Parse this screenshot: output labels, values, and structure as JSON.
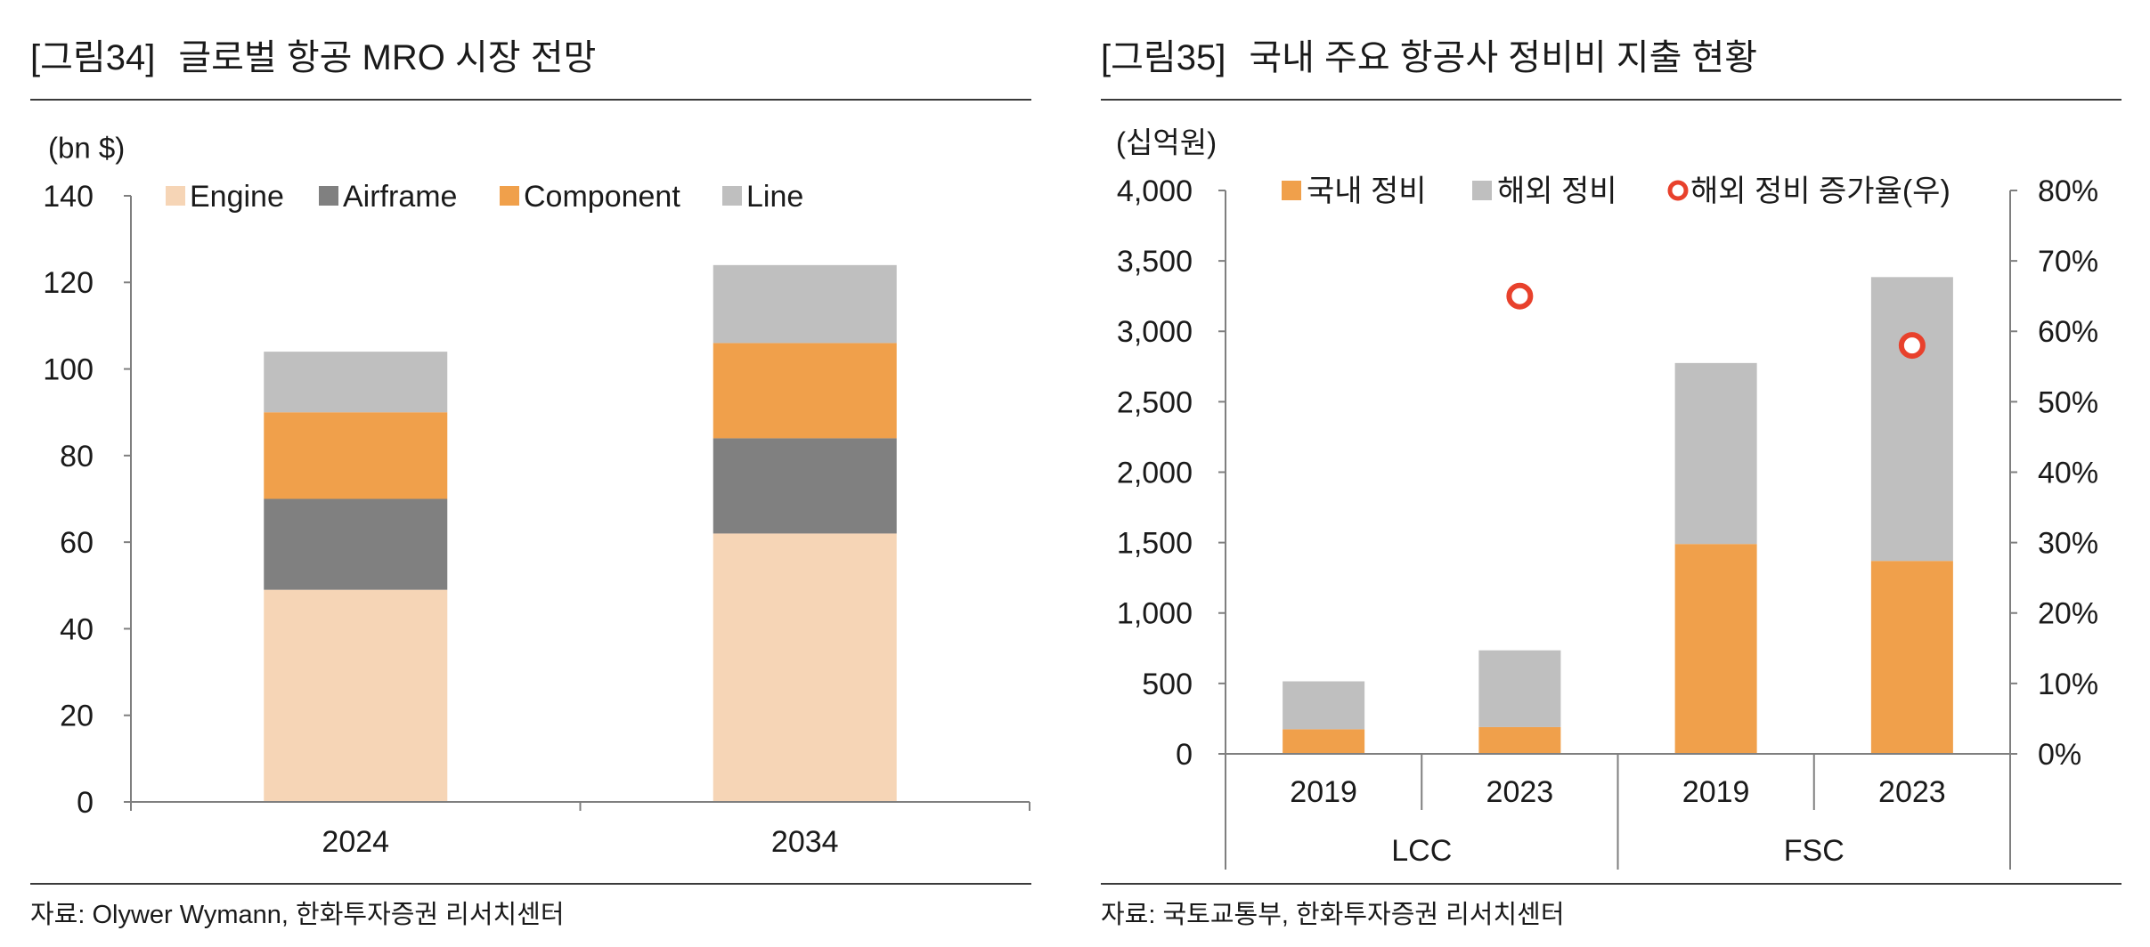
{
  "chart_data": [
    {
      "type": "bar",
      "stacked": true,
      "figure_label": "[그림34]",
      "title": "글로벌 항공 MRO 시장 전망",
      "ylabel": "(bn $)",
      "xlabel": "",
      "categories": [
        "2024",
        "2034"
      ],
      "ylim": [
        0,
        140
      ],
      "ytick_labels": [
        "0",
        "20",
        "40",
        "60",
        "80",
        "100",
        "120",
        "140"
      ],
      "series": [
        {
          "name": "Engine",
          "color": "#F6D5B6",
          "values": [
            49,
            62
          ]
        },
        {
          "name": "Airframe",
          "color": "#808080",
          "values": [
            21,
            22
          ]
        },
        {
          "name": "Component",
          "color": "#F0A04B",
          "values": [
            20,
            22
          ]
        },
        {
          "name": "Line",
          "color": "#BFBFBF",
          "values": [
            14,
            18
          ]
        }
      ],
      "source": "자료: Olywer Wymann, 한화투자증권 리서치센터"
    },
    {
      "type": "bar",
      "stacked": true,
      "figure_label": "[그림35]",
      "title": "국내 주요 항공사 정비비 지출 현황",
      "ylabel": "(십억원)",
      "xlabel": "",
      "categories": [
        "2019",
        "2023",
        "2019",
        "2023"
      ],
      "groups": [
        {
          "label": "LCC",
          "span": 2
        },
        {
          "label": "FSC",
          "span": 2
        }
      ],
      "ylim": [
        0,
        4000
      ],
      "ytick_labels": [
        "0",
        "500",
        "1,000",
        "1,500",
        "2,000",
        "2,500",
        "3,000",
        "3,500",
        "4,000"
      ],
      "y2lim": [
        0,
        80
      ],
      "y2tick_labels": [
        "0%",
        "10%",
        "20%",
        "30%",
        "40%",
        "50%",
        "60%",
        "70%",
        "80%"
      ],
      "series": [
        {
          "name": "국내 정비",
          "type": "bar",
          "color": "#F0A04B",
          "values": [
            175,
            190,
            1490,
            1370
          ]
        },
        {
          "name": "해외 정비",
          "type": "bar",
          "color": "#BFBFBF",
          "values": [
            340,
            545,
            1285,
            2015
          ]
        },
        {
          "name": "해외 정비 증가율(우)",
          "type": "scatter",
          "color": "#E8412C",
          "values": [
            null,
            65,
            null,
            58
          ]
        }
      ],
      "source": "자료: 국토교통부, 한화투자증권 리서치센터"
    }
  ]
}
